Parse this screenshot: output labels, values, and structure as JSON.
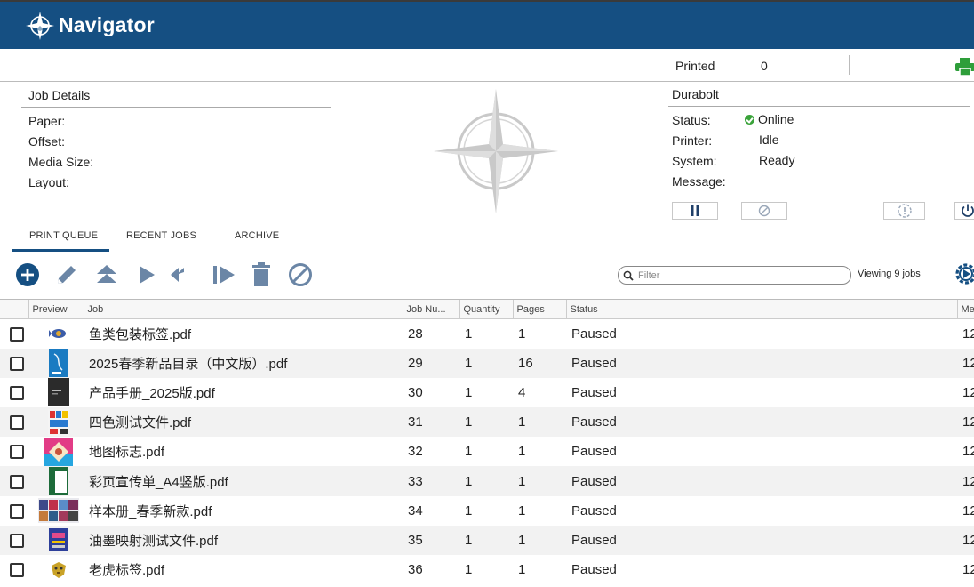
{
  "app": {
    "title": "Navigator"
  },
  "counters": {
    "printed_label": "Printed",
    "printed_value": "0"
  },
  "job_details": {
    "heading": "Job Details",
    "fields": [
      {
        "label": "Paper:",
        "value": ""
      },
      {
        "label": "Offset:",
        "value": ""
      },
      {
        "label": "Media Size:",
        "value": ""
      },
      {
        "label": "Layout:",
        "value": ""
      }
    ]
  },
  "printer": {
    "name": "Durabolt",
    "status_label": "Status:",
    "status_value": "Online",
    "printer_label": "Printer:",
    "printer_value": "Idle",
    "system_label": "System:",
    "system_value": "Ready",
    "message_label": "Message:",
    "message_value": "",
    "status_color": "#3aa33a"
  },
  "tabs": [
    {
      "label": "PRINT QUEUE",
      "active": true
    },
    {
      "label": "RECENT JOBS",
      "active": false
    },
    {
      "label": "ARCHIVE",
      "active": false
    }
  ],
  "toolbar": {
    "icons": [
      "add-icon",
      "edit-icon",
      "move-to-top-icon",
      "play-icon",
      "reply-all-icon",
      "step-forward-icon",
      "trash-icon",
      "cancel-icon"
    ],
    "filter_placeholder": "Filter",
    "viewing_text": "Viewing 9 jobs"
  },
  "table": {
    "columns": [
      "",
      "Preview",
      "Job",
      "Job Nu...",
      "Quantity",
      "Pages",
      "Status",
      "Me"
    ],
    "rows": [
      {
        "job": "鱼类包装标签.pdf",
        "number": "28",
        "quantity": "1",
        "pages": "1",
        "status": "Paused",
        "me": "12"
      },
      {
        "job": "2025春季新品目录（中文版）.pdf",
        "number": "29",
        "quantity": "1",
        "pages": "16",
        "status": "Paused",
        "me": "12"
      },
      {
        "job": "产品手册_2025版.pdf",
        "number": "30",
        "quantity": "1",
        "pages": "4",
        "status": "Paused",
        "me": "12"
      },
      {
        "job": "四色测试文件.pdf",
        "number": "31",
        "quantity": "1",
        "pages": "1",
        "status": "Paused",
        "me": "12"
      },
      {
        "job": "地图标志.pdf",
        "number": "32",
        "quantity": "1",
        "pages": "1",
        "status": "Paused",
        "me": "12"
      },
      {
        "job": "彩页宣传单_A4竖版.pdf",
        "number": "33",
        "quantity": "1",
        "pages": "1",
        "status": "Paused",
        "me": "12"
      },
      {
        "job": "样本册_春季新款.pdf",
        "number": "34",
        "quantity": "1",
        "pages": "1",
        "status": "Paused",
        "me": "12"
      },
      {
        "job": "油墨映射测试文件.pdf",
        "number": "35",
        "quantity": "1",
        "pages": "1",
        "status": "Paused",
        "me": "12"
      },
      {
        "job": "老虎标签.pdf",
        "number": "36",
        "quantity": "1",
        "pages": "1",
        "status": "Paused",
        "me": "12"
      }
    ]
  },
  "colors": {
    "brand": "#154f82",
    "printer_icon": "#2e9e3a",
    "tool_icon": "#6b86a6"
  }
}
